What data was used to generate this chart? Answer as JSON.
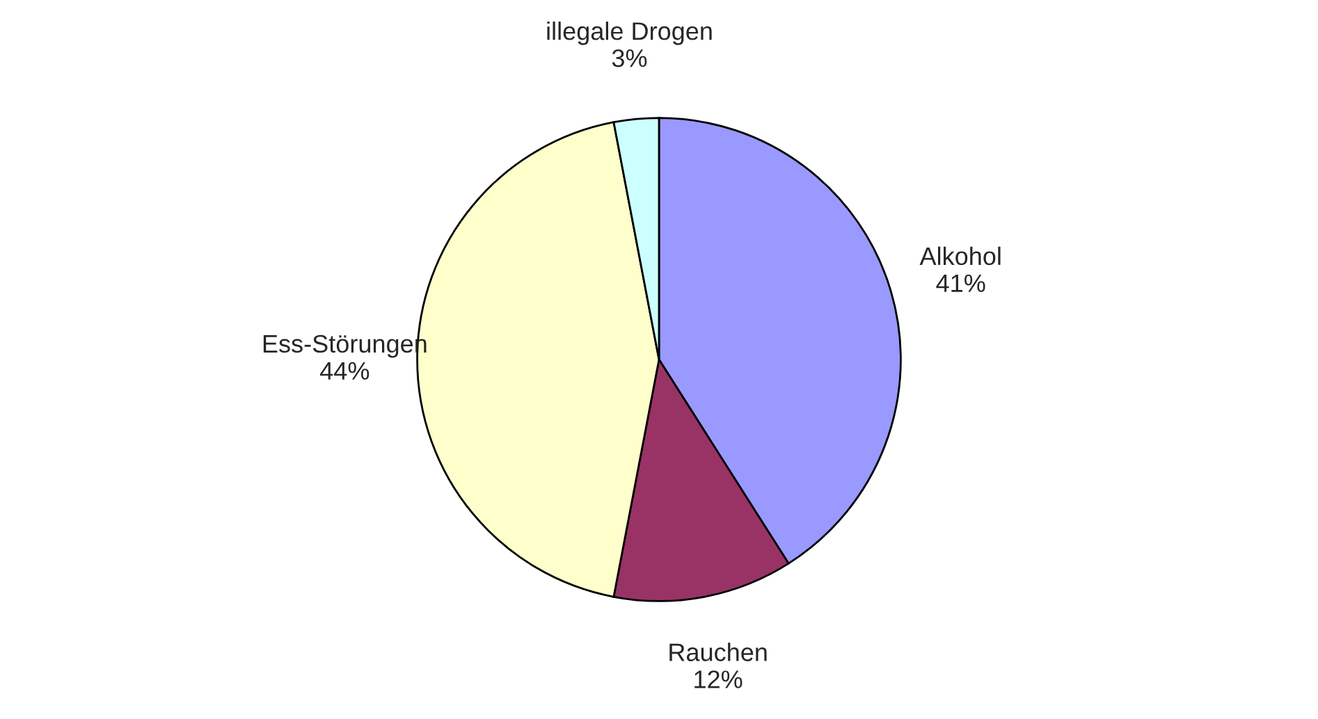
{
  "chart_data": {
    "type": "pie",
    "categories": [
      "Alkohol",
      "Rauchen",
      "Ess-Störungen",
      "illegale Drogen"
    ],
    "values": [
      41,
      12,
      44,
      3
    ],
    "value_labels": [
      "41%",
      "12%",
      "44%",
      "3%"
    ],
    "colors": [
      "#9999ff",
      "#993366",
      "#ffffcc",
      "#ccffff"
    ]
  }
}
